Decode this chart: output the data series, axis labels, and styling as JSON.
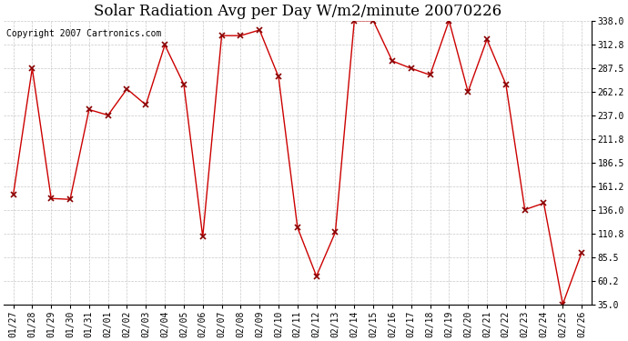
{
  "title": "Solar Radiation Avg per Day W/m2/minute 20070226",
  "copyright": "Copyright 2007 Cartronics.com",
  "dates": [
    "01/27",
    "01/28",
    "01/29",
    "01/30",
    "01/31",
    "02/01",
    "02/02",
    "02/03",
    "02/04",
    "02/05",
    "02/06",
    "02/07",
    "02/08",
    "02/09",
    "02/10",
    "02/11",
    "02/12",
    "02/13",
    "02/14",
    "02/15",
    "02/16",
    "02/17",
    "02/18",
    "02/19",
    "02/20",
    "02/21",
    "02/22",
    "02/23",
    "02/24",
    "02/25",
    "02/26"
  ],
  "values": [
    152,
    287,
    148,
    147,
    243,
    237,
    265,
    248,
    312,
    270,
    107,
    322,
    322,
    328,
    278,
    117,
    65,
    112,
    338,
    338,
    295,
    287,
    280,
    338,
    262,
    318,
    270,
    136,
    143,
    35,
    90
  ],
  "line_color": "#cc0000",
  "marker": "x",
  "marker_color": "#880000",
  "bg_color": "#ffffff",
  "grid_color": "#c8c8c8",
  "yticks": [
    35.0,
    60.2,
    85.5,
    110.8,
    136.0,
    161.2,
    186.5,
    211.8,
    237.0,
    262.2,
    287.5,
    312.8,
    338.0
  ],
  "ylim_min": 35.0,
  "ylim_max": 338.0,
  "title_fontsize": 12,
  "copyright_fontsize": 7,
  "tick_fontsize": 7,
  "figwidth": 6.9,
  "figheight": 3.75,
  "dpi": 100
}
